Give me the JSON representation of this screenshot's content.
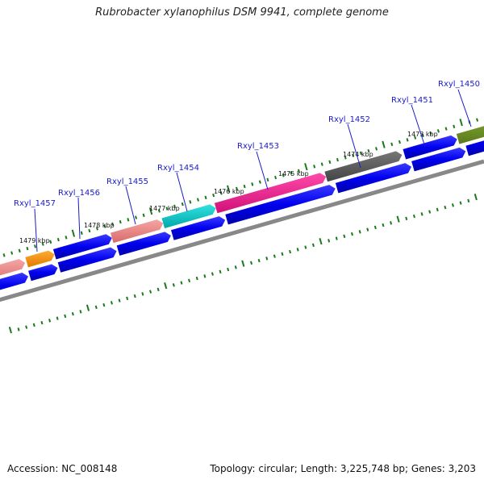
{
  "header": {
    "title": "Rubrobacter xylanophilus DSM 9941, complete genome"
  },
  "footer": {
    "accession": "Accession: NC_008148",
    "summary": "Topology: circular; Length: 3,225,748 bp; Genes: 3,203"
  },
  "gene_labels": [
    {
      "name": "Rxyl_1457"
    },
    {
      "name": "Rxyl_1456"
    },
    {
      "name": "Rxyl_1455"
    },
    {
      "name": "Rxyl_1454"
    },
    {
      "name": "Rxyl_1453"
    },
    {
      "name": "Rxyl_1452"
    },
    {
      "name": "Rxyl_1451"
    },
    {
      "name": "Rxyl_1450"
    }
  ],
  "kbp_ticks": [
    {
      "label": "1479 kbp"
    },
    {
      "label": "1478 kbp"
    },
    {
      "label": "1477 kbp"
    },
    {
      "label": "1476 kbp"
    },
    {
      "label": "1475 kbp"
    },
    {
      "label": "1474 kbp"
    },
    {
      "label": "1473 kbp"
    }
  ],
  "colors": {
    "gene_blue": "#0000ee",
    "salmon": "#f08080",
    "orange": "#ff8c00",
    "cyan": "#00cccc",
    "magenta": "#ff1493",
    "gray": "#555555",
    "olive": "#6b8e23",
    "tick_green": "#1a7a1a",
    "backbone": "#777777"
  }
}
